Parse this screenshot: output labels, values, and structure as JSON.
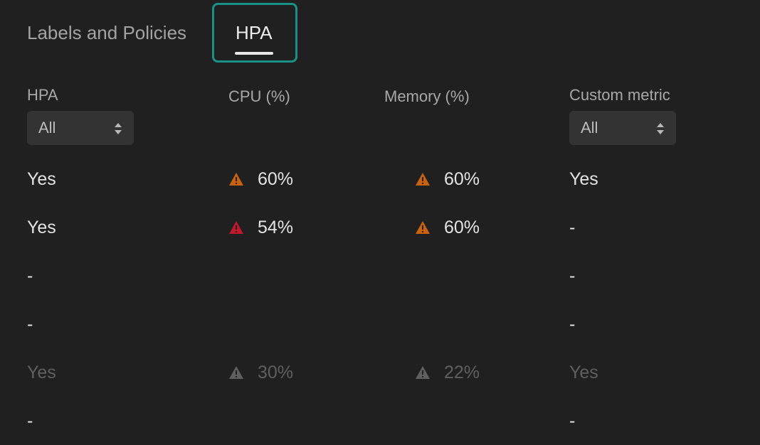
{
  "tabs": [
    {
      "label": "Labels and Policies"
    },
    {
      "label": "HPA"
    }
  ],
  "columns": {
    "hpa": {
      "header": "HPA",
      "filter_value": "All"
    },
    "cpu": {
      "header": "CPU (%)"
    },
    "memory": {
      "header": "Memory (%)"
    },
    "custom": {
      "header": "Custom metric",
      "filter_value": "All"
    }
  },
  "colors": {
    "warning_orange": "#c9620e",
    "warning_red": "#c0192b",
    "warning_muted": "#5f5f5f",
    "selected_tab_outline": "#1a9186"
  },
  "rows": [
    {
      "hpa": "Yes",
      "cpu": "60%",
      "cpu_icon": "warning-orange-icon",
      "memory": "60%",
      "memory_icon": "warning-orange-icon",
      "custom": "Yes",
      "muted": false
    },
    {
      "hpa": "Yes",
      "cpu": "54%",
      "cpu_icon": "warning-red-icon",
      "memory": "60%",
      "memory_icon": "warning-orange-icon",
      "custom": "-",
      "muted": false
    },
    {
      "hpa": "-",
      "cpu": "",
      "memory": "",
      "custom": "-",
      "muted": false
    },
    {
      "hpa": "-",
      "cpu": "",
      "memory": "",
      "custom": "-",
      "muted": false
    },
    {
      "hpa": "Yes",
      "cpu": "30%",
      "cpu_icon": "warning-muted-icon",
      "memory": "22%",
      "memory_icon": "warning-muted-icon",
      "custom": "Yes",
      "muted": true
    },
    {
      "hpa": "-",
      "cpu": "",
      "memory": "",
      "custom": "-",
      "muted": false
    }
  ]
}
